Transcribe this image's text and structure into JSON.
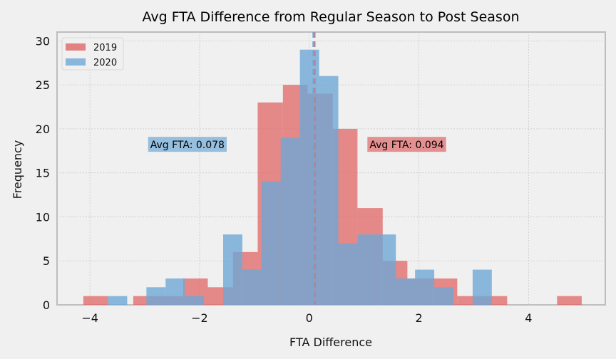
{
  "chart_data": {
    "type": "bar",
    "title": "Avg FTA Difference from Regular Season to Post Season",
    "xlabel": "FTA Difference",
    "ylabel": "Frequency",
    "xlim": [
      -4.6,
      5.4
    ],
    "ylim": [
      0,
      31
    ],
    "x_ticks": [
      -4,
      -2,
      0,
      2,
      4
    ],
    "x_tick_labels": [
      "−4",
      "−2",
      "0",
      "2",
      "4"
    ],
    "y_ticks": [
      0,
      5,
      10,
      15,
      20,
      25,
      30
    ],
    "y_tick_labels": [
      "0",
      "5",
      "10",
      "15",
      "20",
      "25",
      "30"
    ],
    "grid": true,
    "legend_position": "top-left",
    "series": [
      {
        "name": "2019",
        "color": "#e06666",
        "bins": [
          {
            "x0": -4.12,
            "x1": -3.67,
            "count": 1
          },
          {
            "x0": -3.21,
            "x1": -2.76,
            "count": 1
          },
          {
            "x0": -2.76,
            "x1": -2.3,
            "count": 1
          },
          {
            "x0": -2.3,
            "x1": -1.85,
            "count": 3
          },
          {
            "x0": -1.85,
            "x1": -1.39,
            "count": 2
          },
          {
            "x0": -1.39,
            "x1": -0.94,
            "count": 6
          },
          {
            "x0": -0.94,
            "x1": -0.48,
            "count": 23
          },
          {
            "x0": -0.48,
            "x1": -0.03,
            "count": 25
          },
          {
            "x0": -0.03,
            "x1": 0.43,
            "count": 24
          },
          {
            "x0": 0.43,
            "x1": 0.88,
            "count": 20
          },
          {
            "x0": 0.88,
            "x1": 1.34,
            "count": 11
          },
          {
            "x0": 1.34,
            "x1": 1.79,
            "count": 5
          },
          {
            "x0": 1.79,
            "x1": 2.25,
            "count": 3
          },
          {
            "x0": 2.25,
            "x1": 2.7,
            "count": 3
          },
          {
            "x0": 2.7,
            "x1": 3.16,
            "count": 1
          },
          {
            "x0": 3.16,
            "x1": 3.61,
            "count": 1
          },
          {
            "x0": 4.52,
            "x1": 4.97,
            "count": 1
          }
        ],
        "mean": 0.094
      },
      {
        "name": "2020",
        "color": "#6fa8d6",
        "bins": [
          {
            "x0": -3.67,
            "x1": -3.32,
            "count": 1
          },
          {
            "x0": -2.97,
            "x1": -2.62,
            "count": 2
          },
          {
            "x0": -2.62,
            "x1": -2.27,
            "count": 3
          },
          {
            "x0": -2.27,
            "x1": -1.92,
            "count": 1
          },
          {
            "x0": -1.57,
            "x1": -1.22,
            "count": 8
          },
          {
            "x0": -1.22,
            "x1": -0.87,
            "count": 4
          },
          {
            "x0": -0.87,
            "x1": -0.52,
            "count": 14
          },
          {
            "x0": -0.52,
            "x1": -0.17,
            "count": 19
          },
          {
            "x0": -0.17,
            "x1": 0.18,
            "count": 29
          },
          {
            "x0": 0.18,
            "x1": 0.53,
            "count": 26
          },
          {
            "x0": 0.53,
            "x1": 0.88,
            "count": 7
          },
          {
            "x0": 0.88,
            "x1": 1.23,
            "count": 8
          },
          {
            "x0": 1.23,
            "x1": 1.58,
            "count": 8
          },
          {
            "x0": 1.58,
            "x1": 1.93,
            "count": 3
          },
          {
            "x0": 1.93,
            "x1": 2.28,
            "count": 4
          },
          {
            "x0": 2.28,
            "x1": 2.63,
            "count": 2
          },
          {
            "x0": 2.98,
            "x1": 3.33,
            "count": 4
          }
        ],
        "mean": 0.078
      }
    ],
    "annotations": [
      {
        "text": "Avg FTA: 0.078",
        "x": -2.9,
        "y": 18.2,
        "color": "#6fa8d6"
      },
      {
        "text": "Avg FTA: 0.094",
        "x": 1.1,
        "y": 18.2,
        "color": "#e06666"
      }
    ]
  }
}
